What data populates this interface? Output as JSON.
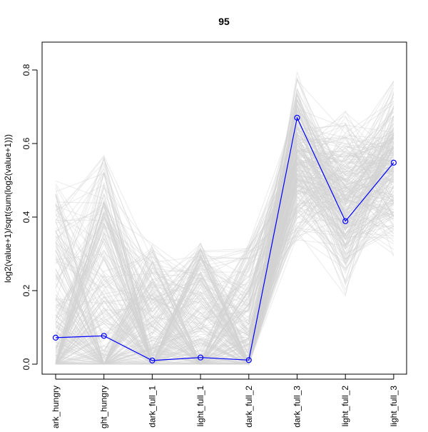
{
  "chart_data": {
    "type": "line",
    "title": "95",
    "xlabel": "",
    "ylabel": "log2(value+1)/sqrt(sum(log2(value+1)))",
    "categories": [
      "dark_hungry",
      "light_hungry",
      "dark_full_1",
      "light_full_1",
      "dark_full_2",
      "dark_full_3",
      "light_full_2",
      "light_full_3"
    ],
    "ylim": [
      0.0,
      0.85
    ],
    "yticks": [
      0.0,
      0.2,
      0.4,
      0.6,
      0.8
    ],
    "ytick_labels": [
      "0.0",
      "0.2",
      "0.4",
      "0.6",
      "0.8"
    ],
    "grid": false,
    "legend": "none",
    "background_series": {
      "color": "#d3d3d3",
      "description_ranges": {
        "dark_hungry": [
          0.0,
          0.5
        ],
        "light_hungry": [
          0.0,
          0.57
        ],
        "dark_full_1": [
          0.0,
          0.33
        ],
        "light_full_1": [
          0.0,
          0.33
        ],
        "dark_full_2": [
          0.0,
          0.33
        ],
        "dark_full_3": [
          0.3,
          0.84
        ],
        "light_full_2": [
          0.17,
          0.71
        ],
        "light_full_3": [
          0.28,
          0.79
        ]
      }
    },
    "series": [
      {
        "color": "#0000ff",
        "values": [
          0.072,
          0.077,
          0.01,
          0.018,
          0.011,
          0.67,
          0.389,
          0.548
        ]
      }
    ]
  }
}
